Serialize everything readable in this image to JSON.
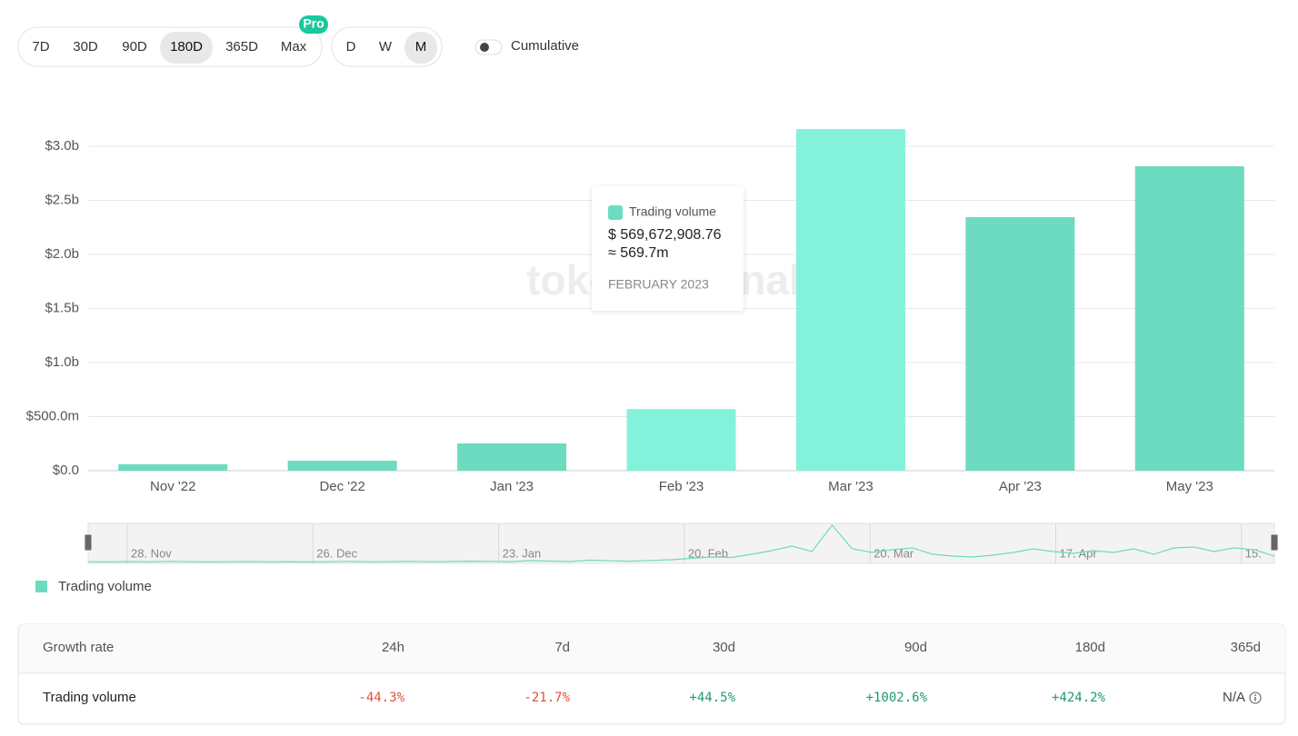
{
  "controls": {
    "ranges": [
      "7D",
      "30D",
      "90D",
      "180D",
      "365D",
      "Max"
    ],
    "selected_range": "180D",
    "pro_badge": "Pro",
    "intervals": [
      "D",
      "W",
      "M"
    ],
    "selected_interval": "M",
    "cumulative": "Cumulative"
  },
  "chart_data": {
    "type": "bar",
    "watermark": "tokenterminal",
    "categories": [
      "Nov '22",
      "Dec '22",
      "Jan '23",
      "Feb '23",
      "Mar '23",
      "Apr '23",
      "May '23"
    ],
    "series": [
      {
        "name": "Trading volume",
        "color": "#6ddbbf",
        "colors": [
          "#6ddbbf",
          "#6ddbbf",
          "#6ddbbf",
          "#84f2db",
          "#84f2db",
          "#6ddbbf",
          "#6ddbbf"
        ],
        "values": [
          59000000,
          92000000,
          252000000,
          569672908.76,
          3160000000,
          2345000000,
          2815000000
        ]
      }
    ],
    "ylim": [
      0,
      3000000000
    ],
    "yticks": [
      {
        "value": 0,
        "label": "$0.0"
      },
      {
        "value": 500000000,
        "label": "$500.0m"
      },
      {
        "value": 1000000000,
        "label": "$1.0b"
      },
      {
        "value": 1500000000,
        "label": "$1.5b"
      },
      {
        "value": 2000000000,
        "label": "$2.0b"
      },
      {
        "value": 2500000000,
        "label": "$2.5b"
      },
      {
        "value": 3000000000,
        "label": "$3.0b"
      }
    ],
    "grid": true,
    "tooltip": {
      "value_label": "$ 569,672,908.76",
      "approx_label": "≈ 569.7m",
      "date": "FEBRUARY 2023"
    },
    "navigator": {
      "labels": [
        "28. Nov",
        "26. Dec",
        "23. Jan",
        "20. Feb",
        "20. Mar",
        "17. Apr",
        "15."
      ],
      "ylim": [
        0,
        420000000
      ],
      "values": [
        8000000,
        6000000,
        10000000,
        7000000,
        12000000,
        9000000,
        6000000,
        8000000,
        10000000,
        7000000,
        9000000,
        6000000,
        8000000,
        11000000,
        7000000,
        9000000,
        12000000,
        8000000,
        10000000,
        14000000,
        12000000,
        9000000,
        20000000,
        15000000,
        11000000,
        25000000,
        18000000,
        14000000,
        22000000,
        30000000,
        45000000,
        60000000,
        55000000,
        90000000,
        130000000,
        180000000,
        120000000,
        410000000,
        150000000,
        110000000,
        140000000,
        160000000,
        90000000,
        70000000,
        60000000,
        80000000,
        110000000,
        150000000,
        120000000,
        100000000,
        130000000,
        110000000,
        150000000,
        90000000,
        160000000,
        170000000,
        120000000,
        160000000,
        140000000,
        70000000
      ]
    }
  },
  "table": {
    "header": [
      "Growth rate",
      "24h",
      "7d",
      "30d",
      "90d",
      "180d",
      "365d"
    ],
    "rows": [
      [
        "Trading volume",
        "-44.3%",
        "-21.7%",
        "+44.5%",
        "+1002.6%",
        "+424.2%",
        "N/A"
      ]
    ]
  }
}
